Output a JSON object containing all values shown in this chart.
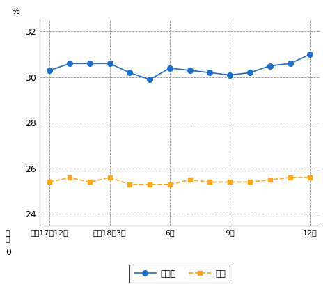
{
  "gifu": [
    30.3,
    30.6,
    30.6,
    30.6,
    30.2,
    29.9,
    30.4,
    30.3,
    30.2,
    30.1,
    30.2,
    30.5,
    30.6,
    31.0
  ],
  "national": [
    25.4,
    25.6,
    25.4,
    25.6,
    25.3,
    25.3,
    25.3,
    25.5,
    25.4,
    25.4,
    25.4,
    25.5,
    25.6,
    25.6
  ],
  "x_labels": [
    "平成17年12月",
    "平成18年3月",
    "6月",
    "9月",
    "12月"
  ],
  "x_tick_positions": [
    0,
    3,
    6,
    9,
    13
  ],
  "ylabel": "%",
  "yticks_display": [
    24,
    26,
    28,
    30,
    32
  ],
  "ylim": [
    23.5,
    32.5
  ],
  "gifu_color": "#1e6ec8",
  "national_color": "#f5a623",
  "legend_gifu": "岐阜県",
  "legend_national": "全国",
  "background_color": "#ffffff",
  "grid_color": "#888888",
  "figsize": [
    4.74,
    4.15
  ],
  "dpi": 100
}
